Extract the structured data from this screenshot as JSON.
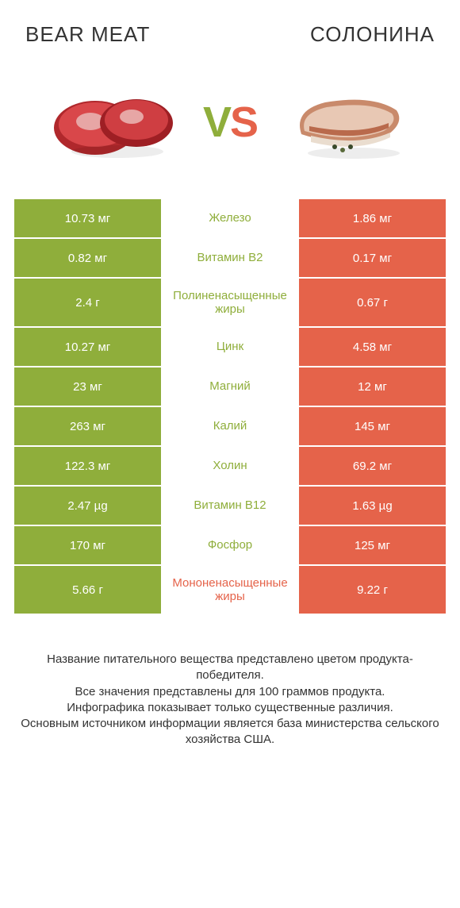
{
  "header": {
    "left_title": "BEAR MEAT",
    "right_title": "СОЛОНИНА"
  },
  "vs": {
    "v": "V",
    "s": "S"
  },
  "colors": {
    "left_win": "#8fae3b",
    "right_win": "#e5634a",
    "mid_bg": "#ffffff",
    "text": "#333333",
    "cell_text": "#ffffff"
  },
  "rows": [
    {
      "label": "Железо",
      "left": "10.73 мг",
      "right": "1.86 мг",
      "winner": "left",
      "tall": false
    },
    {
      "label": "Витамин В2",
      "left": "0.82 мг",
      "right": "0.17 мг",
      "winner": "left",
      "tall": false
    },
    {
      "label": "Полиненасыщенные жиры",
      "left": "2.4 г",
      "right": "0.67 г",
      "winner": "left",
      "tall": true
    },
    {
      "label": "Цинк",
      "left": "10.27 мг",
      "right": "4.58 мг",
      "winner": "left",
      "tall": false
    },
    {
      "label": "Магний",
      "left": "23 мг",
      "right": "12 мг",
      "winner": "left",
      "tall": false
    },
    {
      "label": "Калий",
      "left": "263 мг",
      "right": "145 мг",
      "winner": "left",
      "tall": false
    },
    {
      "label": "Холин",
      "left": "122.3 мг",
      "right": "69.2 мг",
      "winner": "left",
      "tall": false
    },
    {
      "label": "Витамин В12",
      "left": "2.47 µg",
      "right": "1.63 µg",
      "winner": "left",
      "tall": false
    },
    {
      "label": "Фосфор",
      "left": "170 мг",
      "right": "125 мг",
      "winner": "left",
      "tall": false
    },
    {
      "label": "Мононенасыщенные жиры",
      "left": "5.66 г",
      "right": "9.22 г",
      "winner": "right",
      "tall": true
    }
  ],
  "footnote": {
    "l1": "Название питательного вещества представлено цветом продукта-победителя.",
    "l2": "Все значения представлены для 100 граммов продукта.",
    "l3": "Инфографика показывает только существенные различия.",
    "l4": "Основным источником информации является база министерства сельского хозяйства США."
  }
}
